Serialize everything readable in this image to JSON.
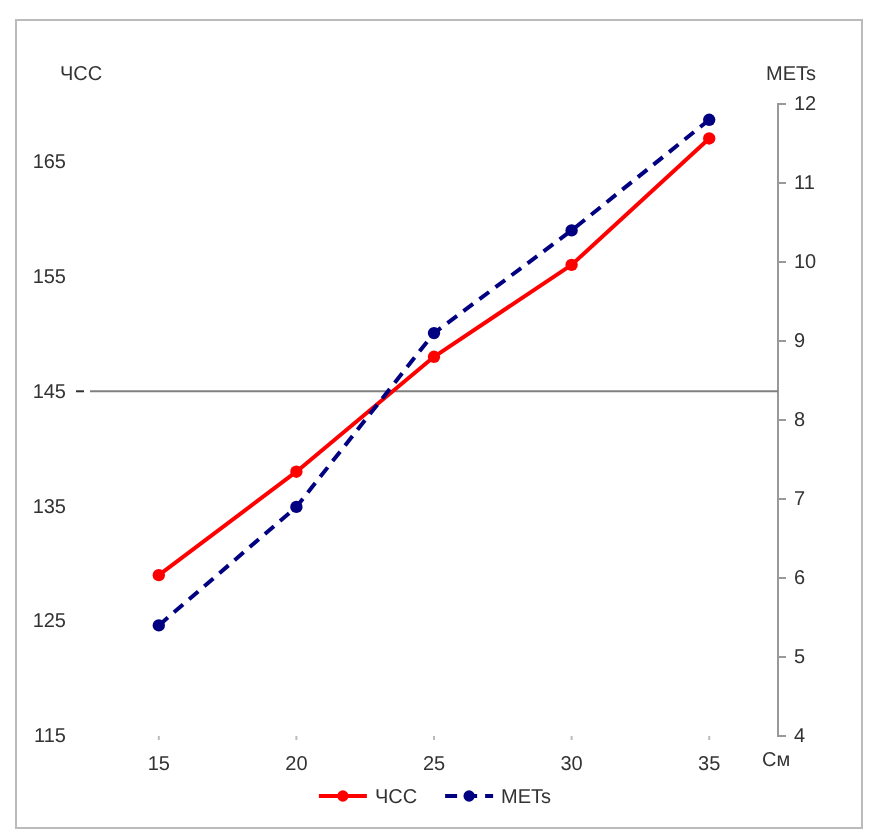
{
  "chart_data": {
    "type": "line",
    "ylabel": "ЧСС",
    "y2label": "METs",
    "xlabel": "См",
    "x": [
      15,
      20,
      25,
      30,
      35
    ],
    "series": [
      {
        "name": "ЧСС",
        "color": "#ff0000",
        "values": [
          129,
          138,
          148,
          156,
          167
        ],
        "line_style": "solid"
      },
      {
        "name": "METs",
        "color": "#000080",
        "values": [
          5.4,
          6.9,
          9.1,
          10.4,
          11.8
        ],
        "axis": "y2",
        "line_style": "dashed"
      }
    ],
    "xlim": [
      12.5,
      37.5
    ],
    "xticks": [
      15,
      20,
      25,
      30,
      35
    ],
    "ylim": [
      115,
      170
    ],
    "yticks": [
      115,
      125,
      135,
      145,
      155,
      165
    ],
    "y2lim": [
      4,
      12
    ],
    "y2ticks": [
      4,
      5,
      6,
      7,
      8,
      9,
      10,
      11,
      12
    ],
    "ref_lines": [
      {
        "axis": "y",
        "value": 145,
        "color": "#808080"
      }
    ],
    "marker": "circle",
    "grid": false,
    "legend": "bottom"
  }
}
